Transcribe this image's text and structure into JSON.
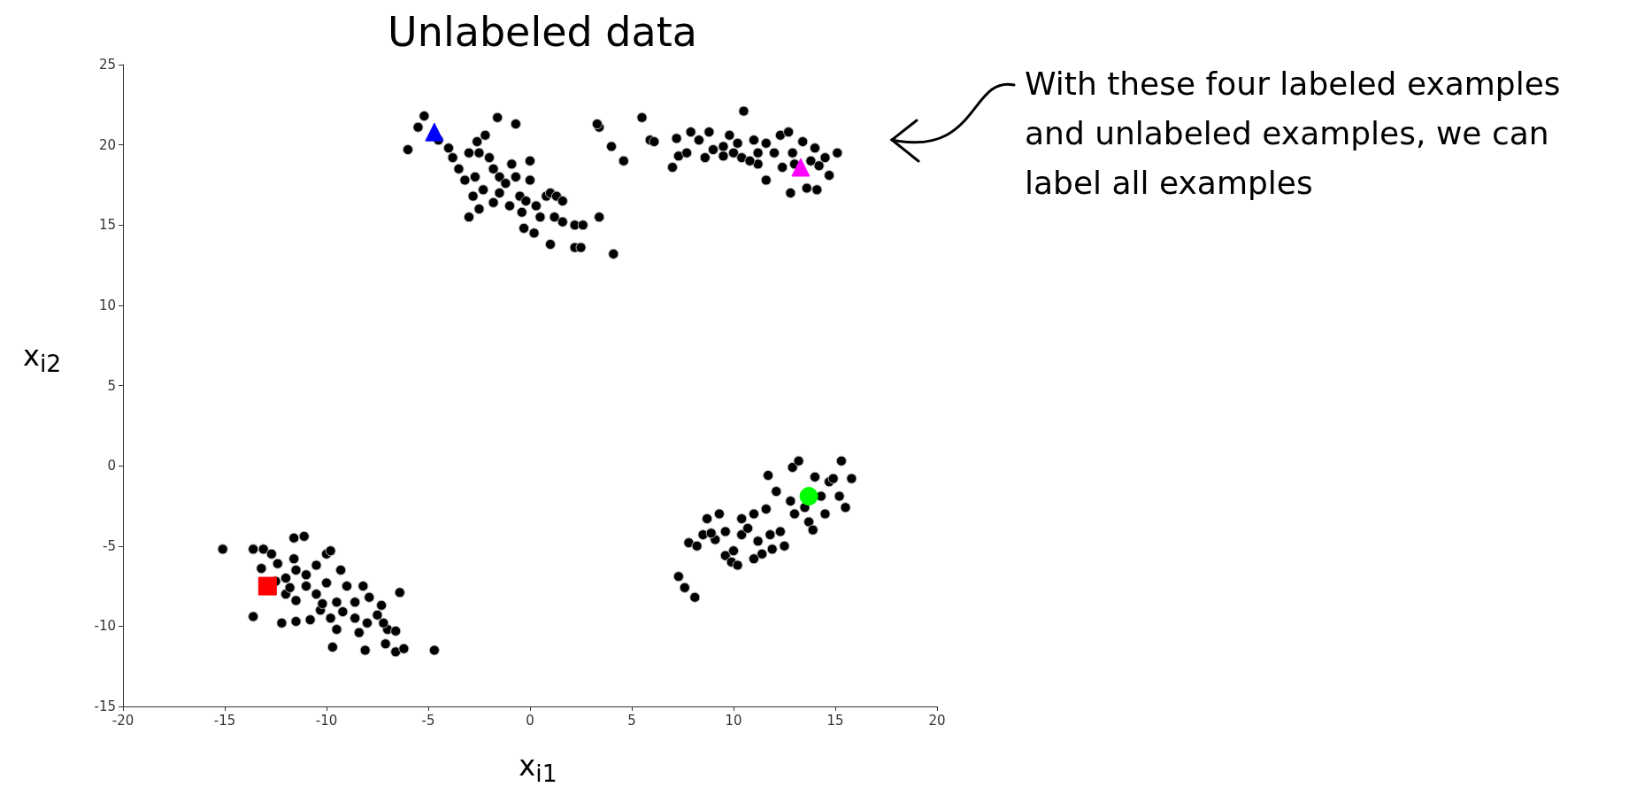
{
  "chart_data": {
    "type": "scatter",
    "title": "Unlabeled data",
    "xlabel": "x$_{i1}$",
    "ylabel": "x$_{i2}$",
    "xlim": [
      -20,
      20
    ],
    "xticks": [
      -20,
      -15,
      -10,
      -5,
      0,
      5,
      10,
      15,
      20
    ],
    "ylim": [
      -15,
      25
    ],
    "yticks": [
      -15,
      -10,
      -5,
      0,
      5,
      10,
      15,
      20,
      25
    ],
    "marker": "circle",
    "annotations": [
      "With these four labeled examples and unlabeled examples, we can label all examples"
    ],
    "series": [
      {
        "color": "#000000",
        "x": [
          -5.2,
          -5.5,
          -6,
          -4.5,
          -4,
          -3.8,
          -3.5,
          -3,
          -2.6,
          -2.2,
          -2.5,
          -2,
          -1.6,
          -0.7,
          -1.8,
          -2.7,
          -3.2,
          -2.3,
          -1.5,
          -2.8,
          -1.5,
          -0.9,
          -1.2,
          -0.5,
          -1,
          -1.8,
          -0.4,
          -0.7,
          0,
          0,
          -0.2,
          0.5,
          0.8,
          1,
          1.3,
          1.6,
          1.2,
          1.6,
          2.2,
          2.6,
          3.4,
          0.2,
          1,
          2.2,
          2.5,
          4.1,
          -0.3,
          -3,
          -2.5,
          0.3,
          3.4,
          3.3,
          4,
          4.6,
          5.5,
          5.9,
          6.1,
          7.2,
          7.3,
          7.7,
          7.9,
          8.3,
          8.6,
          8.8,
          9.5,
          9.8,
          10,
          10.2,
          10.5,
          10.4,
          11,
          11.2,
          11.6,
          11.2,
          12,
          12.3,
          12.7,
          12.9,
          13.4,
          13.8,
          14.2,
          14.5,
          14.7,
          15.1,
          11.6,
          12.8,
          13.6,
          14.1,
          13,
          9,
          10.8,
          12.4,
          14,
          9.5,
          7,
          -15.1,
          -13.6,
          -13.1,
          -12.7,
          -11.6,
          -11.1,
          -11.6,
          -12.4,
          -13.2,
          -12,
          -11.5,
          -11,
          -10.5,
          -10,
          -9.8,
          -9.3,
          -12,
          -11.5,
          -11,
          -10.5,
          -10,
          -9.5,
          -9,
          -8.6,
          -8.2,
          -7.9,
          -7.3,
          -6.4,
          -7.5,
          -8,
          -8.6,
          -9.2,
          -9.8,
          -10.3,
          -10.8,
          -11.5,
          -12.2,
          -13.6,
          -9.5,
          -8.4,
          -7,
          -6.6,
          -9.7,
          -8.1,
          -7.1,
          -6.6,
          -6.2,
          -4.7,
          -12.5,
          -10.2,
          -7.2,
          -11.8,
          7.3,
          7.6,
          8.1,
          7.8,
          8.2,
          8.5,
          8.7,
          9.1,
          9.3,
          9.6,
          9.6,
          9.9,
          10,
          10.4,
          10.4,
          10.7,
          11,
          11.2,
          11.4,
          11,
          11.6,
          11.8,
          11.7,
          12.1,
          12.3,
          12.5,
          12.8,
          12.9,
          13,
          13.2,
          13.5,
          13.7,
          13.9,
          14,
          14.3,
          14.7,
          14.9,
          15.2,
          15.3,
          15.5,
          15.8,
          14.5,
          10.2,
          11.9,
          8.9
        ],
        "values": [
          21.8,
          21.1,
          19.7,
          20.3,
          19.8,
          19.2,
          18.5,
          19.5,
          20.2,
          20.6,
          19.5,
          19.2,
          21.7,
          21.3,
          18.5,
          18,
          17.8,
          17.2,
          17,
          16.8,
          18,
          18.8,
          17.6,
          16.8,
          16.2,
          16.4,
          15.8,
          18,
          17.8,
          19,
          16.5,
          15.5,
          16.8,
          17,
          16.8,
          16.5,
          15.5,
          15.2,
          15,
          15,
          15.5,
          14.5,
          13.8,
          13.6,
          13.6,
          13.2,
          14.8,
          15.5,
          16,
          16.2,
          21.1,
          21.3,
          19.9,
          19,
          21.7,
          20.3,
          20.2,
          20.4,
          19.3,
          19.5,
          20.8,
          20.3,
          19.2,
          20.8,
          19.9,
          20.6,
          19.5,
          20.1,
          22.1,
          19.2,
          20.3,
          19.5,
          20.1,
          18.8,
          19.5,
          20.6,
          20.8,
          19.5,
          20.2,
          19,
          18.7,
          19.2,
          18.1,
          19.5,
          17.8,
          17,
          17.3,
          17.2,
          18.8,
          19.7,
          19,
          18.6,
          19.8,
          19.3,
          18.6,
          -5.2,
          -5.2,
          -5.2,
          -5.5,
          -4.5,
          -4.4,
          -5.8,
          -6.1,
          -6.4,
          -7,
          -6.5,
          -6.8,
          -6.2,
          -5.5,
          -5.3,
          -6.5,
          -8,
          -8.4,
          -7.5,
          -8,
          -7.3,
          -8.5,
          -7.5,
          -8.5,
          -7.5,
          -8.2,
          -8.7,
          -7.9,
          -9.3,
          -9.8,
          -9.5,
          -9.1,
          -9.5,
          -9,
          -9.6,
          -9.7,
          -9.8,
          -9.4,
          -10.2,
          -10.4,
          -10.2,
          -10.3,
          -11.3,
          -11.5,
          -11.1,
          -11.6,
          -11.4,
          -11.5,
          -7.2,
          -8.6,
          -9.8,
          -7.6,
          -6.9,
          -7.6,
          -8.2,
          -4.8,
          -5,
          -4.3,
          -3.3,
          -4.6,
          -3,
          -4.1,
          -5.6,
          -6,
          -5.3,
          -4.3,
          -3.3,
          -3.9,
          -3,
          -4.7,
          -5.5,
          -5.8,
          -2.7,
          -4.3,
          -0.6,
          -1.6,
          -4.1,
          -5,
          -2.2,
          -0.1,
          -3,
          0.3,
          -2.6,
          -3.5,
          -4,
          -0.7,
          -1.9,
          -1,
          -0.8,
          -1.9,
          0.3,
          -2.6,
          -0.8,
          -3,
          -6.2,
          -5.2,
          -4.2
        ]
      },
      {
        "color": "#ff0000",
        "marker": "square",
        "x": [
          -12.9
        ],
        "values": [
          -7.5
        ]
      },
      {
        "color": "#0000ff",
        "marker": "triangle",
        "x": [
          -4.7
        ],
        "values": [
          20.8
        ]
      },
      {
        "color": "#ff00ff",
        "marker": "triangle",
        "x": [
          13.3
        ],
        "values": [
          18.6
        ]
      },
      {
        "color": "#00ff00",
        "marker": "circle",
        "x": [
          13.7
        ],
        "values": [
          -1.9
        ]
      }
    ]
  }
}
